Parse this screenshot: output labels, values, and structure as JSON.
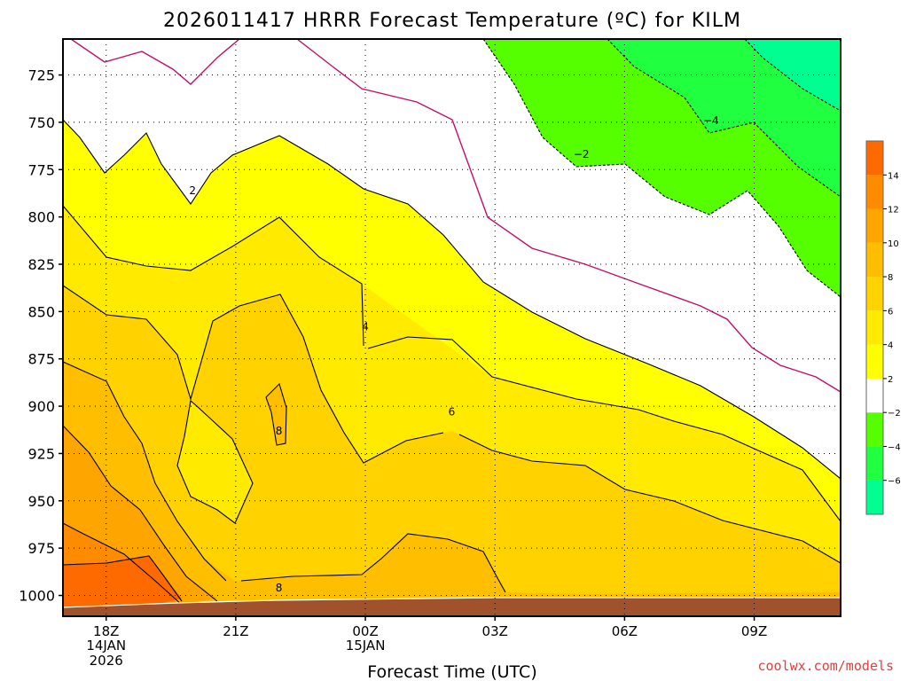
{
  "chart_data": {
    "type": "heatmap",
    "title": "2026011417 HRRR Forecast Temperature (ºC) for KILM",
    "xlabel": "Forecast Time (UTC)",
    "ylabel": "",
    "x_ticks": [
      {
        "label": "18Z",
        "hour": 0,
        "date": "14JAN",
        "year": "2026"
      },
      {
        "label": "21Z",
        "hour": 3,
        "date": "",
        "year": ""
      },
      {
        "label": "00Z",
        "hour": 6,
        "date": "15JAN",
        "year": ""
      },
      {
        "label": "03Z",
        "hour": 9,
        "date": "",
        "year": ""
      },
      {
        "label": "06Z",
        "hour": 12,
        "date": "",
        "year": ""
      },
      {
        "label": "09Z",
        "hour": 15,
        "date": "",
        "year": ""
      }
    ],
    "xlim_hours": [
      -1,
      17
    ],
    "y_ticks": [
      725,
      750,
      775,
      800,
      825,
      850,
      875,
      900,
      925,
      950,
      975,
      1000
    ],
    "ylim_hpa": [
      706,
      1011
    ],
    "contour_labels": [
      {
        "text": "2",
        "hour": 2.0,
        "hpa": 786
      },
      {
        "text": "4",
        "hour": 6.0,
        "hpa": 858
      },
      {
        "text": "6",
        "hour": 8.0,
        "hpa": 903
      },
      {
        "text": "8",
        "hour": 4.0,
        "hpa": 913
      },
      {
        "text": "8",
        "hour": 4.0,
        "hpa": 996
      },
      {
        "text": "−2",
        "hour": 11.0,
        "hpa": 767
      },
      {
        "text": "−4",
        "hour": 14.0,
        "hpa": 749
      }
    ],
    "colorbar": {
      "levels": [
        -8,
        -6,
        -4,
        -2,
        2,
        4,
        6,
        8,
        10,
        12,
        14,
        16
      ],
      "colors": [
        "#00ff90",
        "#20ff40",
        "#55ff00",
        "#ffffff",
        "#ffff00",
        "#ffea00",
        "#ffd200",
        "#ffbe00",
        "#ffa500",
        "#ff8c00",
        "#ff6a00"
      ],
      "tick_labels": [
        "−6",
        "−4",
        "−2",
        "2",
        "4",
        "6",
        "8",
        "10",
        "12",
        "14"
      ],
      "tick_values": [
        -6,
        -4,
        -2,
        2,
        4,
        6,
        8,
        10,
        12,
        14
      ]
    },
    "grid": true
  },
  "credit": "coolwx.com/models"
}
